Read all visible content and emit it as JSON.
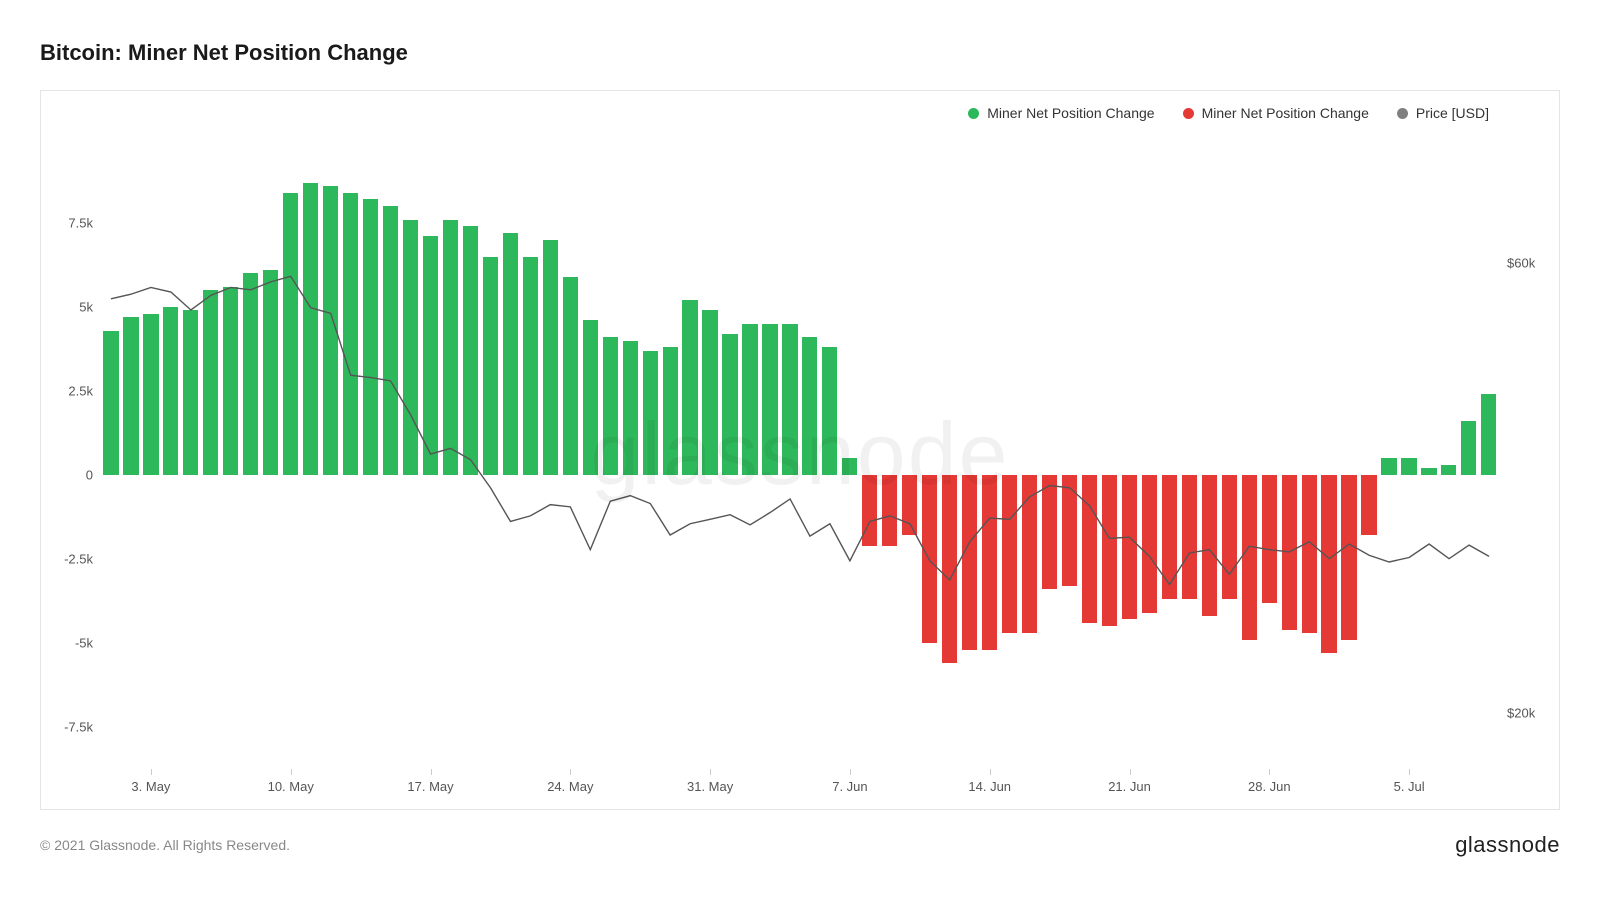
{
  "title": "Bitcoin: Miner Net Position Change",
  "copyright": "© 2021 Glassnode. All Rights Reserved.",
  "brand": "glassnode",
  "watermark": "glassnode",
  "legend": [
    {
      "label": "Miner Net Position Change",
      "color": "#2eb85c"
    },
    {
      "label": "Miner Net Position Change",
      "color": "#e53935"
    },
    {
      "label": "Price [USD]",
      "color": "#808080"
    }
  ],
  "chart": {
    "type": "bar+line",
    "background_color": "#ffffff",
    "border_color": "#e5e5e5",
    "bar_positive_color": "#2eb85c",
    "bar_negative_color": "#e53935",
    "line_color": "#555555",
    "line_width": 1.4,
    "bar_width_ratio": 0.76,
    "left_axis": {
      "min": -8750,
      "max": 10000,
      "ticks": [
        {
          "v": 7500,
          "label": "7.5k"
        },
        {
          "v": 5000,
          "label": "5k"
        },
        {
          "v": 2500,
          "label": "2.5k"
        },
        {
          "v": 0,
          "label": "0"
        },
        {
          "v": -2500,
          "label": "-2.5k"
        },
        {
          "v": -5000,
          "label": "-5k"
        },
        {
          "v": -7500,
          "label": "-7.5k"
        }
      ]
    },
    "right_axis": {
      "min": 15000,
      "max": 71000,
      "ticks": [
        {
          "v": 60000,
          "label": "$60k"
        },
        {
          "v": 20000,
          "label": "$20k"
        }
      ]
    },
    "x_ticks": [
      {
        "idx": 2,
        "label": "3. May"
      },
      {
        "idx": 9,
        "label": "10. May"
      },
      {
        "idx": 16,
        "label": "17. May"
      },
      {
        "idx": 23,
        "label": "24. May"
      },
      {
        "idx": 30,
        "label": "31. May"
      },
      {
        "idx": 37,
        "label": "7. Jun"
      },
      {
        "idx": 44,
        "label": "14. Jun"
      },
      {
        "idx": 51,
        "label": "21. Jun"
      },
      {
        "idx": 58,
        "label": "28. Jun"
      },
      {
        "idx": 65,
        "label": "5. Jul"
      }
    ],
    "bars": [
      4300,
      4700,
      4800,
      5000,
      4900,
      5500,
      5600,
      6000,
      6100,
      8400,
      8700,
      8600,
      8400,
      8200,
      8000,
      7600,
      7100,
      7600,
      7400,
      6500,
      7200,
      6500,
      7000,
      5900,
      4600,
      4100,
      4000,
      3700,
      3800,
      5200,
      4900,
      4200,
      4500,
      4500,
      4500,
      4100,
      3800,
      500,
      -2100,
      -2100,
      -1800,
      -5000,
      -5600,
      -5200,
      -5200,
      -4700,
      -4700,
      -3400,
      -3300,
      -4400,
      -4500,
      -4300,
      -4100,
      -3700,
      -3700,
      -4200,
      -3700,
      -4900,
      -3800,
      -4600,
      -4700,
      -5300,
      -4900,
      -1800,
      500,
      500,
      200,
      300,
      1600,
      2400
    ],
    "price": [
      56800,
      57200,
      57800,
      57400,
      55800,
      57100,
      57800,
      57600,
      58300,
      58800,
      56000,
      55500,
      50000,
      49800,
      49500,
      46500,
      43000,
      43500,
      42500,
      40000,
      37000,
      37500,
      38500,
      38300,
      34500,
      38800,
      39300,
      38600,
      35800,
      36800,
      37200,
      37600,
      36700,
      37800,
      39000,
      35700,
      36800,
      33500,
      37000,
      37500,
      36800,
      33500,
      31800,
      35200,
      37300,
      37200,
      39200,
      40200,
      40000,
      38400,
      35500,
      35600,
      33900,
      31400,
      34200,
      34500,
      32300,
      34800,
      34500,
      34300,
      35200,
      33700,
      35000,
      34000,
      33400,
      33800,
      35000,
      33700,
      34900,
      33900
    ]
  }
}
